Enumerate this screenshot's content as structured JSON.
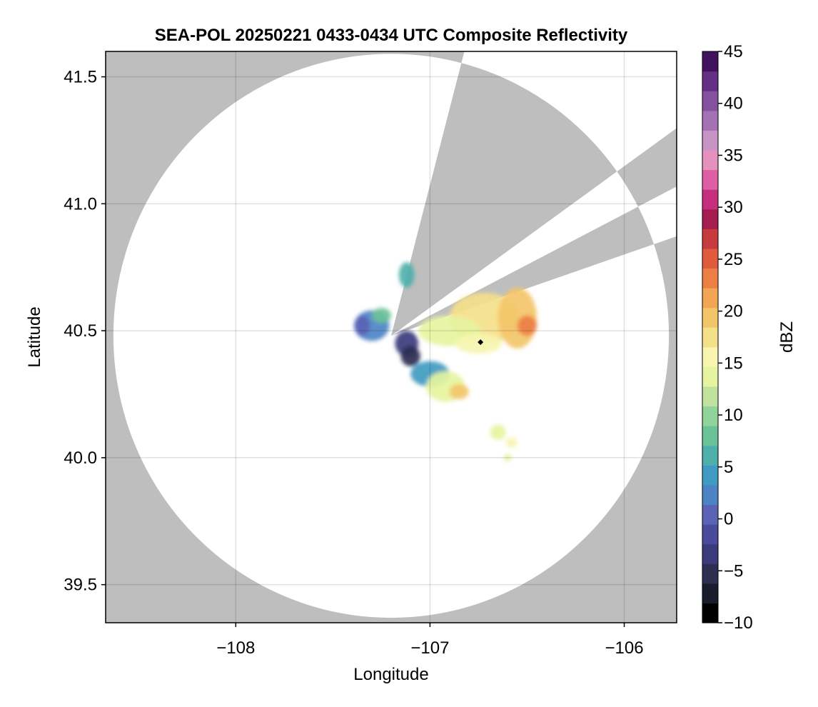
{
  "chart_data": {
    "type": "heatmap",
    "title": "SEA-POL 20250221 0433-0434 UTC Composite Reflectivity",
    "xlabel": "Longitude",
    "ylabel": "Latitude",
    "xlim": [
      -108.67,
      -105.73
    ],
    "ylim": [
      39.35,
      41.6
    ],
    "xticks": [
      -108,
      -107,
      -106
    ],
    "xtick_labels": [
      "−108",
      "−107",
      "−106"
    ],
    "yticks": [
      39.5,
      40.0,
      40.5,
      41.0,
      41.5
    ],
    "ytick_labels": [
      "39.5",
      "40.0",
      "40.5",
      "41.0",
      "41.5"
    ],
    "grid": true,
    "background_color": "#bebebe",
    "radar_coverage": {
      "center": [
        -107.2,
        40.48
      ],
      "radius_lon": 1.43,
      "radius_lat": 1.11,
      "blocked_sectors": [
        {
          "from": [
            -106.85,
            41.52
          ],
          "to": [
            -107.15,
            40.5
          ]
        },
        {
          "from": [
            -106.05,
            41.12
          ],
          "to": [
            -106.75,
            40.6
          ]
        }
      ]
    },
    "reflectivity_cells": [
      {
        "lon": -106.72,
        "lat": 40.55,
        "rlon": 0.18,
        "rlat": 0.1,
        "dbz": 17
      },
      {
        "lon": -106.55,
        "lat": 40.55,
        "rlon": 0.1,
        "rlat": 0.12,
        "dbz": 19
      },
      {
        "lon": -106.5,
        "lat": 40.52,
        "rlon": 0.05,
        "rlat": 0.04,
        "dbz": 23
      },
      {
        "lon": -106.9,
        "lat": 40.5,
        "rlon": 0.16,
        "rlat": 0.06,
        "dbz": 14
      },
      {
        "lon": -106.75,
        "lat": 40.45,
        "rlon": 0.12,
        "rlat": 0.04,
        "dbz": 16
      },
      {
        "lon": -107.3,
        "lat": 40.52,
        "rlon": 0.09,
        "rlat": 0.06,
        "dbz": 3
      },
      {
        "lon": -107.35,
        "lat": 40.52,
        "rlon": 0.04,
        "rlat": 0.04,
        "dbz": 1
      },
      {
        "lon": -107.25,
        "lat": 40.56,
        "rlon": 0.05,
        "rlat": 0.03,
        "dbz": 8
      },
      {
        "lon": -107.12,
        "lat": 40.72,
        "rlon": 0.04,
        "rlat": 0.05,
        "dbz": 6
      },
      {
        "lon": -107.12,
        "lat": 40.45,
        "rlon": 0.06,
        "rlat": 0.05,
        "dbz": -4
      },
      {
        "lon": -107.1,
        "lat": 40.4,
        "rlon": 0.05,
        "rlat": 0.04,
        "dbz": -5
      },
      {
        "lon": -107.0,
        "lat": 40.33,
        "rlon": 0.1,
        "rlat": 0.05,
        "dbz": 5
      },
      {
        "lon": -106.92,
        "lat": 40.28,
        "rlon": 0.1,
        "rlat": 0.06,
        "dbz": 13
      },
      {
        "lon": -106.85,
        "lat": 40.26,
        "rlon": 0.05,
        "rlat": 0.03,
        "dbz": 19
      },
      {
        "lon": -106.65,
        "lat": 40.1,
        "rlon": 0.04,
        "rlat": 0.03,
        "dbz": 14
      },
      {
        "lon": -106.58,
        "lat": 40.06,
        "rlon": 0.03,
        "rlat": 0.02,
        "dbz": 15
      },
      {
        "lon": -106.6,
        "lat": 40.0,
        "rlon": 0.02,
        "rlat": 0.015,
        "dbz": 14
      }
    ],
    "marker": {
      "lon": -106.74,
      "lat": 40.455,
      "shape": "diamond",
      "color": "#000000"
    },
    "colorbar": {
      "label": "dBZ",
      "min": -10,
      "max": 45,
      "ticks": [
        -10,
        -5,
        0,
        5,
        10,
        15,
        20,
        25,
        30,
        35,
        40,
        45
      ],
      "tick_labels": [
        "−10",
        "−5",
        "0",
        "5",
        "10",
        "15",
        "20",
        "25",
        "30",
        "35",
        "40",
        "45"
      ],
      "colors": [
        "#000000",
        "#1a1c2c",
        "#2e2e52",
        "#3b3b7c",
        "#4a4a9c",
        "#5a63b5",
        "#4c83c4",
        "#3f9bc1",
        "#4fb0ab",
        "#6cc298",
        "#92d29b",
        "#bfe29f",
        "#e6f4a0",
        "#f7f5b0",
        "#f5e08a",
        "#f3c56a",
        "#f2a554",
        "#ec7f44",
        "#e05a3c",
        "#c73b3e",
        "#a51c4f",
        "#c62f7e",
        "#dd5ea2",
        "#e690bd",
        "#c794c6",
        "#a571b5",
        "#85509f",
        "#652f86",
        "#43125f"
      ]
    }
  }
}
